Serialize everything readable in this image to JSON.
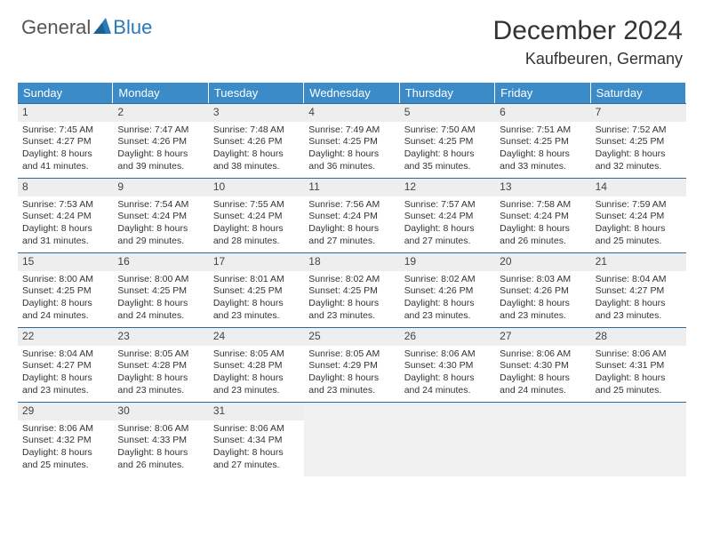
{
  "brand": {
    "part1": "General",
    "part2": "Blue"
  },
  "title": "December 2024",
  "location": "Kaufbeuren, Germany",
  "colors": {
    "header_bg": "#3b8bc9",
    "header_text": "#ffffff",
    "rule": "#2a6a9e",
    "daynum_bg": "#eeeeee",
    "blank_bg": "#f0f0f0",
    "brand_blue": "#2a7ab9"
  },
  "day_headers": [
    "Sunday",
    "Monday",
    "Tuesday",
    "Wednesday",
    "Thursday",
    "Friday",
    "Saturday"
  ],
  "grid": {
    "leading_blanks": 0,
    "trailing_blanks": 4,
    "days": [
      {
        "n": 1,
        "sunrise": "7:45 AM",
        "sunset": "4:27 PM",
        "daylight": "8 hours and 41 minutes."
      },
      {
        "n": 2,
        "sunrise": "7:47 AM",
        "sunset": "4:26 PM",
        "daylight": "8 hours and 39 minutes."
      },
      {
        "n": 3,
        "sunrise": "7:48 AM",
        "sunset": "4:26 PM",
        "daylight": "8 hours and 38 minutes."
      },
      {
        "n": 4,
        "sunrise": "7:49 AM",
        "sunset": "4:25 PM",
        "daylight": "8 hours and 36 minutes."
      },
      {
        "n": 5,
        "sunrise": "7:50 AM",
        "sunset": "4:25 PM",
        "daylight": "8 hours and 35 minutes."
      },
      {
        "n": 6,
        "sunrise": "7:51 AM",
        "sunset": "4:25 PM",
        "daylight": "8 hours and 33 minutes."
      },
      {
        "n": 7,
        "sunrise": "7:52 AM",
        "sunset": "4:25 PM",
        "daylight": "8 hours and 32 minutes."
      },
      {
        "n": 8,
        "sunrise": "7:53 AM",
        "sunset": "4:24 PM",
        "daylight": "8 hours and 31 minutes."
      },
      {
        "n": 9,
        "sunrise": "7:54 AM",
        "sunset": "4:24 PM",
        "daylight": "8 hours and 29 minutes."
      },
      {
        "n": 10,
        "sunrise": "7:55 AM",
        "sunset": "4:24 PM",
        "daylight": "8 hours and 28 minutes."
      },
      {
        "n": 11,
        "sunrise": "7:56 AM",
        "sunset": "4:24 PM",
        "daylight": "8 hours and 27 minutes."
      },
      {
        "n": 12,
        "sunrise": "7:57 AM",
        "sunset": "4:24 PM",
        "daylight": "8 hours and 27 minutes."
      },
      {
        "n": 13,
        "sunrise": "7:58 AM",
        "sunset": "4:24 PM",
        "daylight": "8 hours and 26 minutes."
      },
      {
        "n": 14,
        "sunrise": "7:59 AM",
        "sunset": "4:24 PM",
        "daylight": "8 hours and 25 minutes."
      },
      {
        "n": 15,
        "sunrise": "8:00 AM",
        "sunset": "4:25 PM",
        "daylight": "8 hours and 24 minutes."
      },
      {
        "n": 16,
        "sunrise": "8:00 AM",
        "sunset": "4:25 PM",
        "daylight": "8 hours and 24 minutes."
      },
      {
        "n": 17,
        "sunrise": "8:01 AM",
        "sunset": "4:25 PM",
        "daylight": "8 hours and 23 minutes."
      },
      {
        "n": 18,
        "sunrise": "8:02 AM",
        "sunset": "4:25 PM",
        "daylight": "8 hours and 23 minutes."
      },
      {
        "n": 19,
        "sunrise": "8:02 AM",
        "sunset": "4:26 PM",
        "daylight": "8 hours and 23 minutes."
      },
      {
        "n": 20,
        "sunrise": "8:03 AM",
        "sunset": "4:26 PM",
        "daylight": "8 hours and 23 minutes."
      },
      {
        "n": 21,
        "sunrise": "8:04 AM",
        "sunset": "4:27 PM",
        "daylight": "8 hours and 23 minutes."
      },
      {
        "n": 22,
        "sunrise": "8:04 AM",
        "sunset": "4:27 PM",
        "daylight": "8 hours and 23 minutes."
      },
      {
        "n": 23,
        "sunrise": "8:05 AM",
        "sunset": "4:28 PM",
        "daylight": "8 hours and 23 minutes."
      },
      {
        "n": 24,
        "sunrise": "8:05 AM",
        "sunset": "4:28 PM",
        "daylight": "8 hours and 23 minutes."
      },
      {
        "n": 25,
        "sunrise": "8:05 AM",
        "sunset": "4:29 PM",
        "daylight": "8 hours and 23 minutes."
      },
      {
        "n": 26,
        "sunrise": "8:06 AM",
        "sunset": "4:30 PM",
        "daylight": "8 hours and 24 minutes."
      },
      {
        "n": 27,
        "sunrise": "8:06 AM",
        "sunset": "4:30 PM",
        "daylight": "8 hours and 24 minutes."
      },
      {
        "n": 28,
        "sunrise": "8:06 AM",
        "sunset": "4:31 PM",
        "daylight": "8 hours and 25 minutes."
      },
      {
        "n": 29,
        "sunrise": "8:06 AM",
        "sunset": "4:32 PM",
        "daylight": "8 hours and 25 minutes."
      },
      {
        "n": 30,
        "sunrise": "8:06 AM",
        "sunset": "4:33 PM",
        "daylight": "8 hours and 26 minutes."
      },
      {
        "n": 31,
        "sunrise": "8:06 AM",
        "sunset": "4:34 PM",
        "daylight": "8 hours and 27 minutes."
      }
    ]
  },
  "labels": {
    "sunrise": "Sunrise:",
    "sunset": "Sunset:",
    "daylight": "Daylight:"
  }
}
